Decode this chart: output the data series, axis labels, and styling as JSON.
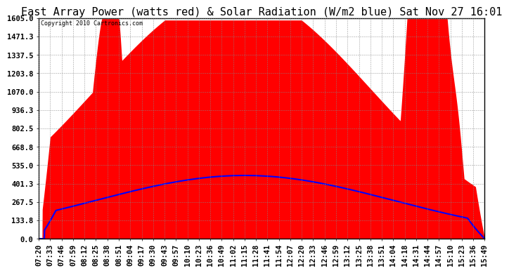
{
  "title": "East Array Power (watts red) & Solar Radiation (W/m2 blue) Sat Nov 27 16:01",
  "copyright": "Copyright 2010 Cartronics.com",
  "yticks": [
    0.0,
    133.8,
    267.5,
    401.3,
    535.0,
    668.8,
    802.5,
    936.3,
    1070.0,
    1203.8,
    1337.5,
    1471.3,
    1605.0
  ],
  "ytick_labels": [
    "0.0",
    "133.8",
    "267.5",
    "401.3",
    "535.0",
    "668.8",
    "802.5",
    "936.3",
    "1070.0",
    "1203.8",
    "1337.5",
    "1471.3",
    "1605.0"
  ],
  "ylim": [
    0.0,
    1605.0
  ],
  "xtick_labels": [
    "07:20",
    "07:33",
    "07:46",
    "07:59",
    "08:12",
    "08:25",
    "08:38",
    "08:51",
    "09:04",
    "09:17",
    "09:30",
    "09:43",
    "09:57",
    "10:10",
    "10:23",
    "10:36",
    "10:49",
    "11:02",
    "11:15",
    "11:28",
    "11:41",
    "11:54",
    "12:07",
    "12:20",
    "12:33",
    "12:46",
    "12:59",
    "13:12",
    "13:25",
    "13:38",
    "13:51",
    "14:04",
    "14:18",
    "14:31",
    "14:44",
    "14:57",
    "15:10",
    "15:23",
    "15:36",
    "15:49"
  ],
  "bg_color": "#ffffff",
  "plot_bg_color": "#ffffff",
  "grid_color": "#888888",
  "red_color": "#ff0000",
  "blue_color": "#0000ff",
  "title_fontsize": 11,
  "tick_fontsize": 7.5
}
